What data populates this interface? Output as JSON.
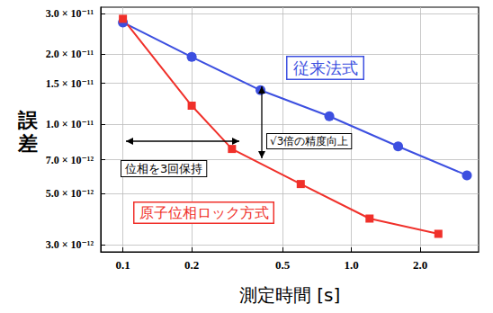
{
  "chart_data": {
    "type": "line",
    "x_label": "測定時間 [s]",
    "y_label": "誤差",
    "log": true,
    "grid": true,
    "xlim": [
      0.08,
      3.6
    ],
    "xticks": [
      0.1,
      0.2,
      0.5,
      {
        "value": 1,
        "label": "1.0"
      },
      {
        "value": 2,
        "label": "2.0"
      }
    ],
    "ylim": [
      2.8e-12,
      3.2e-11
    ],
    "yticks": [
      {
        "value": 3e-12,
        "label": "3.0 × 10⁻¹²"
      },
      {
        "value": 5e-12,
        "label": "5.0 × 10⁻¹²"
      },
      {
        "value": 7e-12,
        "label": "7.0 × 10⁻¹²"
      },
      {
        "value": 1e-11,
        "label": "1.0 × 10⁻¹¹"
      },
      {
        "value": 1.5e-11,
        "label": "1.5 × 10⁻¹¹"
      },
      {
        "value": 2e-11,
        "label": "2.0 × 10⁻¹¹"
      },
      {
        "value": 3e-11,
        "label": "3.0 × 10⁻¹¹"
      }
    ],
    "series": [
      {
        "name": "従来法式",
        "color": "#3c4fe0",
        "marker": "circle",
        "x": [
          0.1,
          0.2,
          0.4,
          0.8,
          1.6,
          3.2
        ],
        "values": [
          2.75e-11,
          1.95e-11,
          1.4e-11,
          1.08e-11,
          8e-12,
          6e-12
        ]
      },
      {
        "name": "原子位相ロック方式",
        "color": "#f0302a",
        "marker": "square",
        "x": [
          0.1,
          0.2,
          0.3,
          0.6,
          1.2,
          2.4
        ],
        "values": [
          2.85e-11,
          1.2e-11,
          7.8e-12,
          5.5e-12,
          3.9e-12,
          3.35e-12
        ]
      }
    ],
    "annotations": [
      "位相を3回保持",
      "√3倍の精度向上"
    ]
  }
}
